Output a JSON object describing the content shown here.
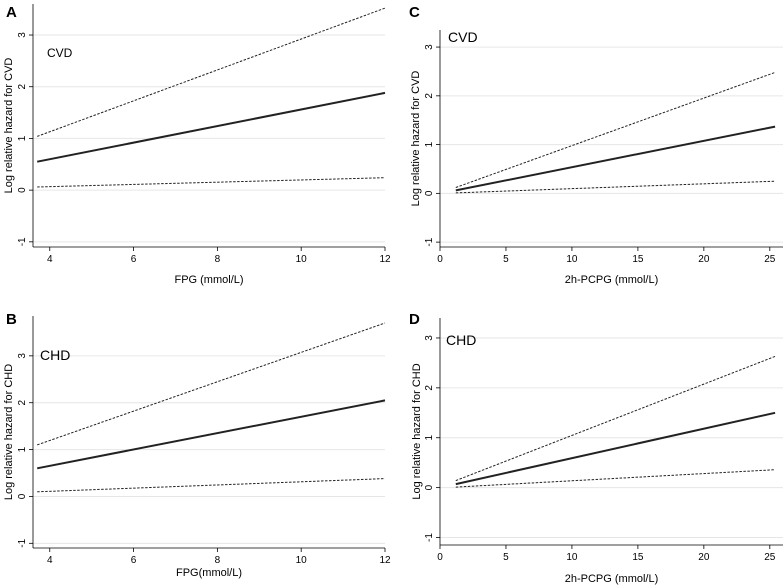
{
  "chart_data": [
    {
      "panel": "A",
      "type": "line",
      "annotation": "CVD",
      "xlabel": "FPG (mmol/L)",
      "ylabel": "Log relative hazard for CVD",
      "xlim": [
        3.6,
        12.0
      ],
      "ylim": [
        -1.1,
        3.6
      ],
      "xticks": [
        4,
        6,
        8,
        10,
        12
      ],
      "yticks": [
        -1,
        0,
        1,
        2,
        3
      ],
      "grid": true,
      "series": [
        {
          "name": "estimate",
          "style": "solid",
          "x": [
            3.7,
            12.0
          ],
          "y": [
            0.55,
            1.88
          ]
        },
        {
          "name": "upper 95% CI",
          "style": "dashed",
          "x": [
            3.7,
            12.0
          ],
          "y": [
            1.04,
            3.52
          ]
        },
        {
          "name": "lower 95% CI",
          "style": "dashed",
          "x": [
            3.7,
            12.0
          ],
          "y": [
            0.06,
            0.24
          ]
        }
      ]
    },
    {
      "panel": "B",
      "type": "line",
      "annotation": "CHD",
      "xlabel": "FPG(mmol/L)",
      "ylabel": "Log relative hazard for CHD",
      "xlim": [
        3.6,
        12.0
      ],
      "ylim": [
        -1.1,
        3.85
      ],
      "xticks": [
        4,
        6,
        8,
        10,
        12
      ],
      "yticks": [
        -1,
        0,
        1,
        2,
        3
      ],
      "grid": true,
      "series": [
        {
          "name": "estimate",
          "style": "solid",
          "x": [
            3.7,
            12.0
          ],
          "y": [
            0.6,
            2.05
          ]
        },
        {
          "name": "upper 95% CI",
          "style": "dashed",
          "x": [
            3.7,
            12.0
          ],
          "y": [
            1.1,
            3.7
          ]
        },
        {
          "name": "lower 95% CI",
          "style": "dashed",
          "x": [
            3.7,
            12.0
          ],
          "y": [
            0.1,
            0.38
          ]
        }
      ]
    },
    {
      "panel": "C",
      "type": "line",
      "annotation": "CVD",
      "xlabel": "2h-PCPG (mmol/L)",
      "ylabel": "Log relative hazard for CVD",
      "xlim": [
        0,
        26
      ],
      "ylim": [
        -1.1,
        3.35
      ],
      "xticks": [
        0,
        5,
        10,
        15,
        20,
        25
      ],
      "yticks": [
        -1,
        0,
        1,
        2,
        3
      ],
      "grid": true,
      "series": [
        {
          "name": "estimate",
          "style": "solid",
          "x": [
            1.2,
            25.4
          ],
          "y": [
            0.06,
            1.37
          ]
        },
        {
          "name": "upper 95% CI",
          "style": "dashed",
          "x": [
            1.2,
            25.4
          ],
          "y": [
            0.12,
            2.48
          ]
        },
        {
          "name": "lower 95% CI",
          "style": "dashed",
          "x": [
            1.2,
            25.4
          ],
          "y": [
            0.01,
            0.25
          ]
        }
      ]
    },
    {
      "panel": "D",
      "type": "line",
      "annotation": "CHD",
      "xlabel": "2h-PCPG (mmol/L)",
      "ylabel": "Log relative hazard for CHD",
      "xlim": [
        0,
        26
      ],
      "ylim": [
        -1.15,
        3.4
      ],
      "xticks": [
        0,
        5,
        10,
        15,
        20,
        25
      ],
      "yticks": [
        -1,
        0,
        1,
        2,
        3
      ],
      "grid": true,
      "series": [
        {
          "name": "estimate",
          "style": "solid",
          "x": [
            1.2,
            25.4
          ],
          "y": [
            0.07,
            1.5
          ]
        },
        {
          "name": "upper 95% CI",
          "style": "dashed",
          "x": [
            1.2,
            25.4
          ],
          "y": [
            0.14,
            2.63
          ]
        },
        {
          "name": "lower 95% CI",
          "style": "dashed",
          "x": [
            1.2,
            25.4
          ],
          "y": [
            0.01,
            0.36
          ]
        }
      ]
    }
  ]
}
